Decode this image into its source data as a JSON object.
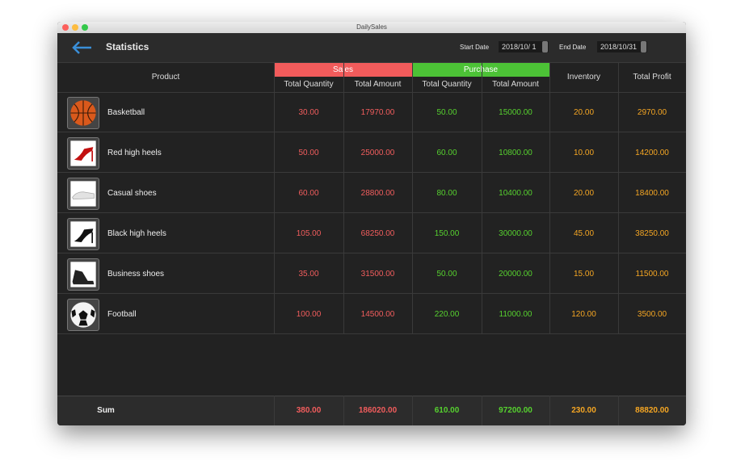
{
  "window": {
    "title": "DailySales"
  },
  "header": {
    "title": "Statistics",
    "start_label": "Start Date",
    "start_date": "2018/10/ 1",
    "end_label": "End Date",
    "end_date": "2018/10/31"
  },
  "table": {
    "columns": {
      "product": "Product",
      "sales": "Sales",
      "purchase": "Purchase",
      "sales_quantity": "Total Quantity",
      "sales_amount": "Total Amount",
      "purchase_quantity": "Total Quantity",
      "purchase_amount": "Total Amount",
      "inventory": "Inventory",
      "profit": "Total Profit"
    },
    "rows": [
      [
        "Basketball",
        "30.00",
        "17970.00",
        "50.00",
        "15000.00",
        "20.00",
        "2970.00"
      ],
      [
        "Red high heels",
        "50.00",
        "25000.00",
        "60.00",
        "10800.00",
        "10.00",
        "14200.00"
      ],
      [
        "Casual shoes",
        "60.00",
        "28800.00",
        "80.00",
        "10400.00",
        "20.00",
        "18400.00"
      ],
      [
        "Black high heels",
        "105.00",
        "68250.00",
        "150.00",
        "30000.00",
        "45.00",
        "38250.00"
      ],
      [
        "Business shoes",
        "35.00",
        "31500.00",
        "50.00",
        "20000.00",
        "15.00",
        "11500.00"
      ],
      [
        "Football",
        "100.00",
        "14500.00",
        "220.00",
        "11000.00",
        "120.00",
        "3500.00"
      ]
    ],
    "sum": [
      "Sum",
      "380.00",
      "186020.00",
      "610.00",
      "97200.00",
      "230.00",
      "88820.00"
    ]
  }
}
